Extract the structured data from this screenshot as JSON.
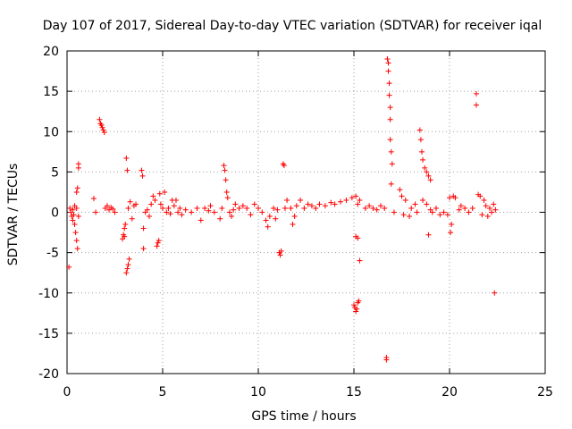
{
  "chart_data": {
    "type": "scatter",
    "title": "Day 107 of 2017, Sidereal Day-to-day VTEC variation (SDTVAR) for receiver iqal",
    "xlabel": "GPS time / hours",
    "ylabel": "SDTVAR / TECUs",
    "xlim": [
      0,
      25
    ],
    "ylim": [
      -20,
      20
    ],
    "grid": true,
    "marker": "+",
    "color": "#ff0000",
    "x_ticks": [
      0,
      5,
      10,
      15,
      20,
      25
    ],
    "y_ticks": [
      -20,
      -15,
      -10,
      -5,
      0,
      5,
      10,
      15,
      20
    ],
    "x_tick_labels": [
      "0",
      "5",
      "10",
      "15",
      "20",
      "25"
    ],
    "y_tick_labels": [
      "-20",
      "-15",
      "-10",
      "-5",
      "0",
      "5",
      "10",
      "15",
      "20"
    ],
    "series": [
      {
        "name": "SDTVAR",
        "points": [
          [
            0.1,
            -6.8
          ],
          [
            0.15,
            0.5
          ],
          [
            0.2,
            0.0
          ],
          [
            0.25,
            -0.5
          ],
          [
            0.3,
            -1.0
          ],
          [
            0.35,
            -0.3
          ],
          [
            0.4,
            -1.5
          ],
          [
            0.45,
            -2.5
          ],
          [
            0.5,
            -3.5
          ],
          [
            0.5,
            2.5
          ],
          [
            0.55,
            3.0
          ],
          [
            0.6,
            5.5
          ],
          [
            0.6,
            6.0
          ],
          [
            0.55,
            -4.5
          ],
          [
            0.6,
            -0.5
          ],
          [
            0.5,
            0.5
          ],
          [
            0.4,
            0.8
          ],
          [
            0.3,
            0.3
          ],
          [
            1.4,
            1.7
          ],
          [
            1.5,
            0.0
          ],
          [
            1.7,
            11.5
          ],
          [
            1.75,
            11.0
          ],
          [
            1.8,
            10.8
          ],
          [
            1.85,
            10.5
          ],
          [
            1.9,
            10.2
          ],
          [
            1.95,
            9.9
          ],
          [
            2.0,
            0.5
          ],
          [
            2.1,
            0.8
          ],
          [
            2.2,
            0.3
          ],
          [
            2.3,
            0.6
          ],
          [
            2.4,
            0.4
          ],
          [
            2.5,
            0.0
          ],
          [
            2.9,
            -3.3
          ],
          [
            2.95,
            -2.8
          ],
          [
            3.0,
            -2.0
          ],
          [
            3.05,
            -1.5
          ],
          [
            3.1,
            -7.5
          ],
          [
            3.15,
            -7.0
          ],
          [
            3.2,
            -6.5
          ],
          [
            3.25,
            -5.8
          ],
          [
            3.1,
            6.7
          ],
          [
            3.15,
            5.2
          ],
          [
            3.0,
            -3.0
          ],
          [
            3.2,
            0.5
          ],
          [
            3.3,
            1.3
          ],
          [
            3.4,
            -0.8
          ],
          [
            3.5,
            0.8
          ],
          [
            3.6,
            1.0
          ],
          [
            3.9,
            5.2
          ],
          [
            3.95,
            4.5
          ],
          [
            4.0,
            -2.0
          ],
          [
            4.0,
            -4.5
          ],
          [
            4.1,
            0.0
          ],
          [
            4.2,
            0.3
          ],
          [
            4.3,
            -0.5
          ],
          [
            4.4,
            1.0
          ],
          [
            4.5,
            2.0
          ],
          [
            4.6,
            1.5
          ],
          [
            4.7,
            -4.2
          ],
          [
            4.75,
            -3.8
          ],
          [
            4.8,
            -3.5
          ],
          [
            4.85,
            2.3
          ],
          [
            4.9,
            1.0
          ],
          [
            5.0,
            0.5
          ],
          [
            5.1,
            2.5
          ],
          [
            5.2,
            0.0
          ],
          [
            5.3,
            0.5
          ],
          [
            5.4,
            -0.2
          ],
          [
            5.5,
            1.5
          ],
          [
            5.6,
            0.8
          ],
          [
            5.7,
            1.5
          ],
          [
            5.8,
            0.0
          ],
          [
            5.9,
            0.5
          ],
          [
            6.0,
            -0.3
          ],
          [
            6.2,
            0.3
          ],
          [
            6.5,
            0.0
          ],
          [
            6.8,
            0.5
          ],
          [
            7.0,
            -1.0
          ],
          [
            7.2,
            0.5
          ],
          [
            7.4,
            0.2
          ],
          [
            7.5,
            0.8
          ],
          [
            7.7,
            0.0
          ],
          [
            8.0,
            -0.8
          ],
          [
            8.1,
            0.5
          ],
          [
            8.2,
            5.8
          ],
          [
            8.25,
            5.2
          ],
          [
            8.3,
            4.0
          ],
          [
            8.35,
            2.5
          ],
          [
            8.4,
            1.8
          ],
          [
            8.5,
            0.0
          ],
          [
            8.6,
            -0.5
          ],
          [
            8.7,
            0.3
          ],
          [
            8.8,
            1.0
          ],
          [
            9.0,
            0.5
          ],
          [
            9.2,
            0.8
          ],
          [
            9.4,
            0.5
          ],
          [
            9.6,
            -0.3
          ],
          [
            9.8,
            1.0
          ],
          [
            10.0,
            0.5
          ],
          [
            10.2,
            0.0
          ],
          [
            10.4,
            -1.0
          ],
          [
            10.5,
            -1.8
          ],
          [
            10.6,
            -0.5
          ],
          [
            10.8,
            0.5
          ],
          [
            10.9,
            -0.8
          ],
          [
            11.0,
            0.3
          ],
          [
            11.1,
            -5.0
          ],
          [
            11.15,
            -5.3
          ],
          [
            11.2,
            -4.8
          ],
          [
            11.3,
            6.0
          ],
          [
            11.35,
            5.8
          ],
          [
            11.4,
            0.5
          ],
          [
            11.5,
            1.5
          ],
          [
            11.7,
            0.5
          ],
          [
            11.8,
            -1.5
          ],
          [
            11.9,
            -0.5
          ],
          [
            12.0,
            0.8
          ],
          [
            12.2,
            1.5
          ],
          [
            12.4,
            0.5
          ],
          [
            12.6,
            1.0
          ],
          [
            12.8,
            0.8
          ],
          [
            13.0,
            0.5
          ],
          [
            13.2,
            1.0
          ],
          [
            13.5,
            0.8
          ],
          [
            13.8,
            1.2
          ],
          [
            14.0,
            1.0
          ],
          [
            14.3,
            1.3
          ],
          [
            14.6,
            1.5
          ],
          [
            14.9,
            1.8
          ],
          [
            15.0,
            -11.5
          ],
          [
            15.05,
            -11.8
          ],
          [
            15.1,
            -12.3
          ],
          [
            15.15,
            -12.0
          ],
          [
            15.2,
            -11.2
          ],
          [
            15.25,
            -11.0
          ],
          [
            15.1,
            -3.0
          ],
          [
            15.2,
            -3.2
          ],
          [
            15.3,
            -6.0
          ],
          [
            15.1,
            2.0
          ],
          [
            15.2,
            1.0
          ],
          [
            15.3,
            1.5
          ],
          [
            15.6,
            0.5
          ],
          [
            15.8,
            0.8
          ],
          [
            16.0,
            0.5
          ],
          [
            16.2,
            0.3
          ],
          [
            16.4,
            0.8
          ],
          [
            16.6,
            0.5
          ],
          [
            16.7,
            -18.0
          ],
          [
            16.7,
            -18.3
          ],
          [
            16.75,
            19.0
          ],
          [
            16.8,
            18.5
          ],
          [
            16.8,
            17.5
          ],
          [
            16.85,
            16.0
          ],
          [
            16.85,
            14.5
          ],
          [
            16.9,
            13.0
          ],
          [
            16.9,
            11.5
          ],
          [
            16.9,
            9.0
          ],
          [
            16.95,
            7.5
          ],
          [
            17.0,
            6.0
          ],
          [
            16.95,
            3.5
          ],
          [
            17.1,
            0.0
          ],
          [
            17.4,
            2.8
          ],
          [
            17.5,
            2.0
          ],
          [
            17.6,
            -0.3
          ],
          [
            17.7,
            1.5
          ],
          [
            17.9,
            -0.5
          ],
          [
            18.0,
            0.5
          ],
          [
            18.2,
            1.0
          ],
          [
            18.3,
            0.0
          ],
          [
            18.45,
            10.2
          ],
          [
            18.5,
            9.0
          ],
          [
            18.55,
            7.5
          ],
          [
            18.6,
            6.5
          ],
          [
            18.7,
            5.5
          ],
          [
            18.8,
            5.0
          ],
          [
            18.9,
            4.5
          ],
          [
            19.0,
            4.0
          ],
          [
            18.6,
            1.5
          ],
          [
            18.8,
            1.0
          ],
          [
            18.9,
            -2.8
          ],
          [
            19.0,
            0.3
          ],
          [
            19.1,
            0.0
          ],
          [
            19.3,
            0.5
          ],
          [
            19.5,
            -0.3
          ],
          [
            19.7,
            0.0
          ],
          [
            19.9,
            -0.3
          ],
          [
            20.0,
            1.8
          ],
          [
            20.05,
            -2.5
          ],
          [
            20.1,
            -1.5
          ],
          [
            20.2,
            2.0
          ],
          [
            20.3,
            1.8
          ],
          [
            20.5,
            0.3
          ],
          [
            20.6,
            0.8
          ],
          [
            20.8,
            0.5
          ],
          [
            21.0,
            0.0
          ],
          [
            21.2,
            0.5
          ],
          [
            21.4,
            14.7
          ],
          [
            21.4,
            13.3
          ],
          [
            21.5,
            2.2
          ],
          [
            21.6,
            2.0
          ],
          [
            21.7,
            -0.3
          ],
          [
            21.8,
            1.5
          ],
          [
            21.9,
            0.8
          ],
          [
            22.0,
            -0.5
          ],
          [
            22.1,
            0.5
          ],
          [
            22.2,
            0.0
          ],
          [
            22.3,
            1.0
          ],
          [
            22.35,
            -10.0
          ],
          [
            22.4,
            0.3
          ]
        ]
      }
    ]
  }
}
